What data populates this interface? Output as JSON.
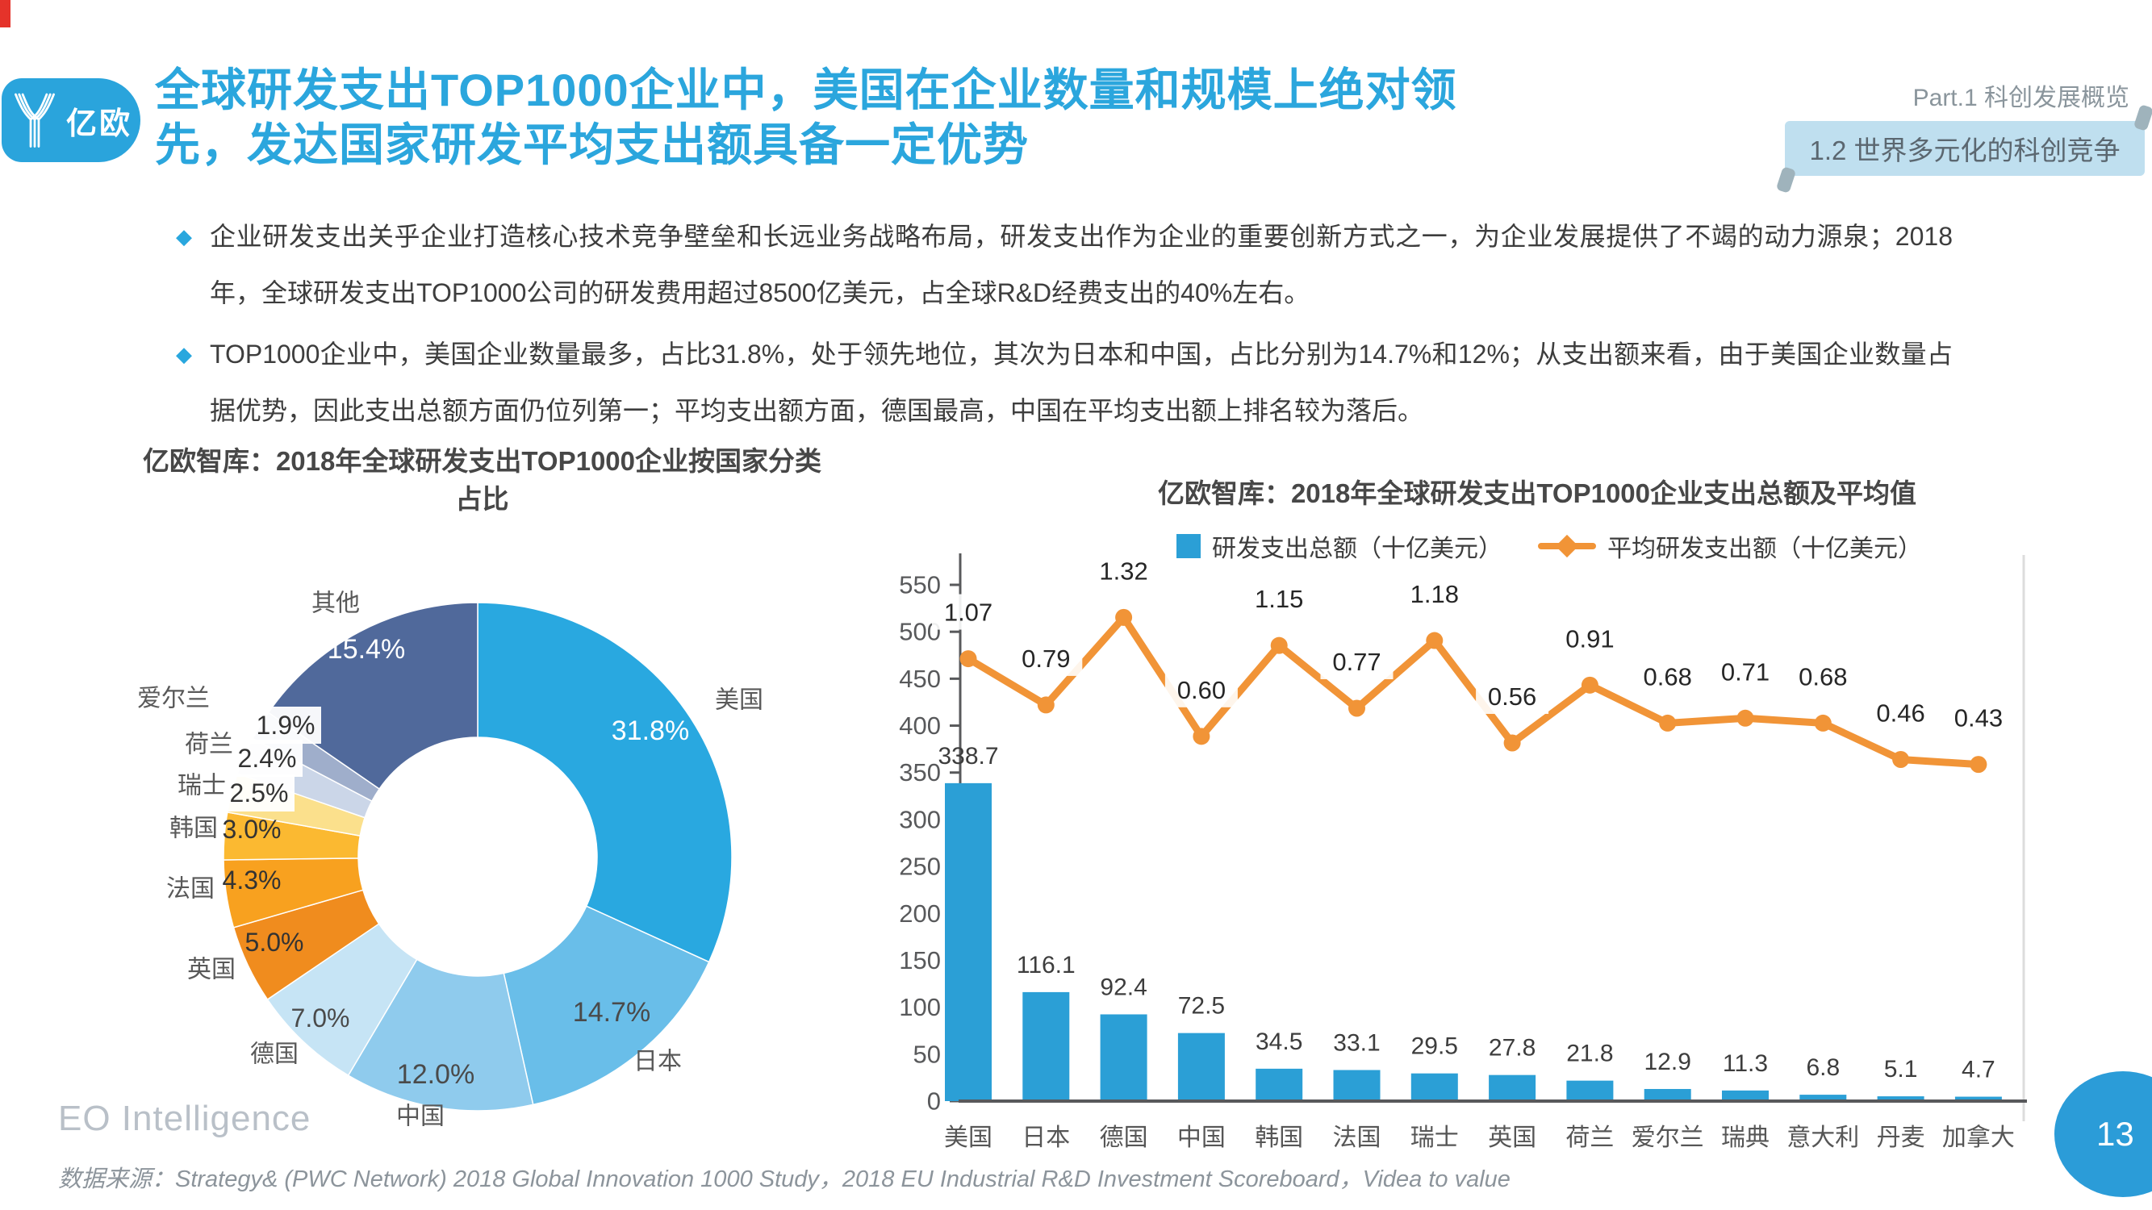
{
  "slide": {
    "page_number": "13",
    "brand": {
      "logo_text": "亿欧",
      "footer_brand": "EO Intelligence"
    },
    "header": {
      "title": "全球研发支出TOP1000企业中，美国在企业数量和规模上绝对领先，发达国家研发平均支出额具备一定优势",
      "part_label": "Part.1 科创发展概览",
      "section_tag": "1.2 世界多元化的科创竞争"
    },
    "bullets": [
      "企业研发支出关乎企业打造核心技术竞争壁垒和长远业务战略布局，研发支出作为企业的重要创新方式之一，为企业发展提供了不竭的动力源泉；2018年，全球研发支出TOP1000公司的研发费用超过8500亿美元，占全球R&D经费支出的40%左右。",
      "TOP1000企业中，美国企业数量最多，占比31.8%，处于领先地位，其次为日本和中国，占比分别为14.7%和12%；从支出额来看，由于美国企业数量占据优势，因此支出总额方面仍位列第一；平均支出额方面，德国最高，中国在平均支出额上排名较为落后。"
    ],
    "source": "数据来源：Strategy& (PWC Network) 2018 Global Innovation 1000 Study，2018 EU Industrial R&D Investment Scoreboard，Videa to value",
    "colors": {
      "accent_blue": "#2BA6DD",
      "tag_background": "#BFDFEF",
      "page_bubble": "#2B9CD8",
      "bar_blue": "#2B9FD6",
      "line_orange": "#F19437"
    }
  },
  "chart_data": [
    {
      "type": "pie",
      "title": "亿欧智库：2018年全球研发支出TOP1000企业按国家分类占比",
      "categories": [
        "美国",
        "日本",
        "中国",
        "德国",
        "英国",
        "法国",
        "韩国",
        "瑞士",
        "荷兰",
        "爱尔兰",
        "其他"
      ],
      "values": [
        31.8,
        14.7,
        12.0,
        7.0,
        5.0,
        4.3,
        3.0,
        2.5,
        2.4,
        1.9,
        15.4
      ],
      "unit": "%",
      "colors": [
        "#29A8E0",
        "#69BEE9",
        "#8FCBED",
        "#C6E4F5",
        "#F08C1E",
        "#F8A11F",
        "#FBB931",
        "#FBE08C",
        "#CBD6E8",
        "#9FAECB",
        "#50699B"
      ],
      "donut": true
    },
    {
      "type": "bar",
      "title": "亿欧智库：2018年全球研发支出TOP1000企业支出总额及平均值",
      "categories": [
        "美国",
        "日本",
        "德国",
        "中国",
        "韩国",
        "法国",
        "瑞士",
        "英国",
        "荷兰",
        "爱尔兰",
        "瑞典",
        "意大利",
        "丹麦",
        "加拿大"
      ],
      "series": [
        {
          "name": "研发支出总额（十亿美元）",
          "type": "bar",
          "color": "#2B9FD6",
          "values": [
            338.7,
            116.1,
            92.4,
            72.5,
            34.5,
            33.1,
            29.5,
            27.8,
            21.8,
            12.9,
            11.3,
            6.8,
            5.1,
            4.7
          ]
        },
        {
          "name": "平均研发支出额（十亿美元）",
          "type": "line",
          "color": "#F19437",
          "values": [
            1.07,
            0.79,
            1.32,
            0.6,
            1.15,
            0.77,
            1.18,
            0.56,
            0.91,
            0.68,
            0.71,
            0.68,
            0.46,
            0.43
          ]
        }
      ],
      "ylim": [
        0,
        550
      ],
      "ytick_step": 50,
      "grid": false,
      "legend_position": "top"
    }
  ]
}
